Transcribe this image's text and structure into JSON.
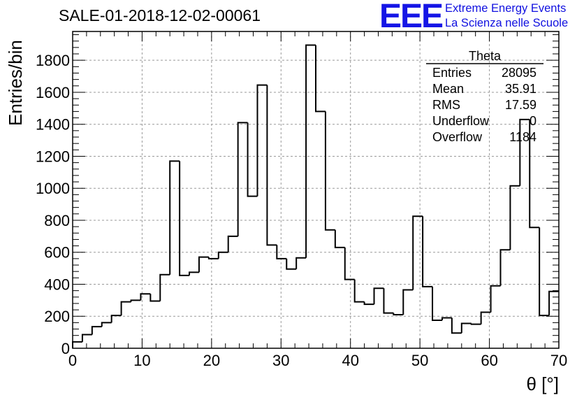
{
  "header": {
    "title": "SALE-01-2018-12-02-00061",
    "logo_text": "EEE",
    "logo_line1": "Extreme Energy Events",
    "logo_line2": "La Scienza nelle Scuole",
    "logo_color": "#1515e6"
  },
  "stats": {
    "name": "Theta",
    "rows": [
      {
        "label": "Entries",
        "value": "28095"
      },
      {
        "label": "Mean",
        "value": "35.91"
      },
      {
        "label": "RMS",
        "value": "17.59"
      },
      {
        "label": "Underflow",
        "value": "0"
      },
      {
        "label": "Overflow",
        "value": "1184"
      }
    ]
  },
  "chart_data": {
    "type": "bar",
    "histogram": true,
    "title": "SALE-01-2018-12-02-00061",
    "xlabel": "θ [°]",
    "ylabel": "Entries/bin",
    "xlim": [
      0,
      70
    ],
    "ylim": [
      0,
      1980
    ],
    "grid": true,
    "bin_width": 1.4,
    "x_ticks": [
      0,
      10,
      20,
      30,
      40,
      50,
      60,
      70
    ],
    "y_ticks": [
      0,
      200,
      400,
      600,
      800,
      1000,
      1200,
      1400,
      1600,
      1800
    ],
    "values": [
      40,
      85,
      135,
      160,
      205,
      290,
      300,
      340,
      295,
      460,
      1170,
      455,
      475,
      570,
      560,
      600,
      700,
      1410,
      950,
      1645,
      645,
      560,
      495,
      565,
      1895,
      1480,
      740,
      630,
      430,
      290,
      275,
      375,
      220,
      210,
      365,
      825,
      385,
      175,
      190,
      95,
      155,
      150,
      225,
      390,
      615,
      1015,
      1430,
      755,
      205,
      355
    ]
  }
}
